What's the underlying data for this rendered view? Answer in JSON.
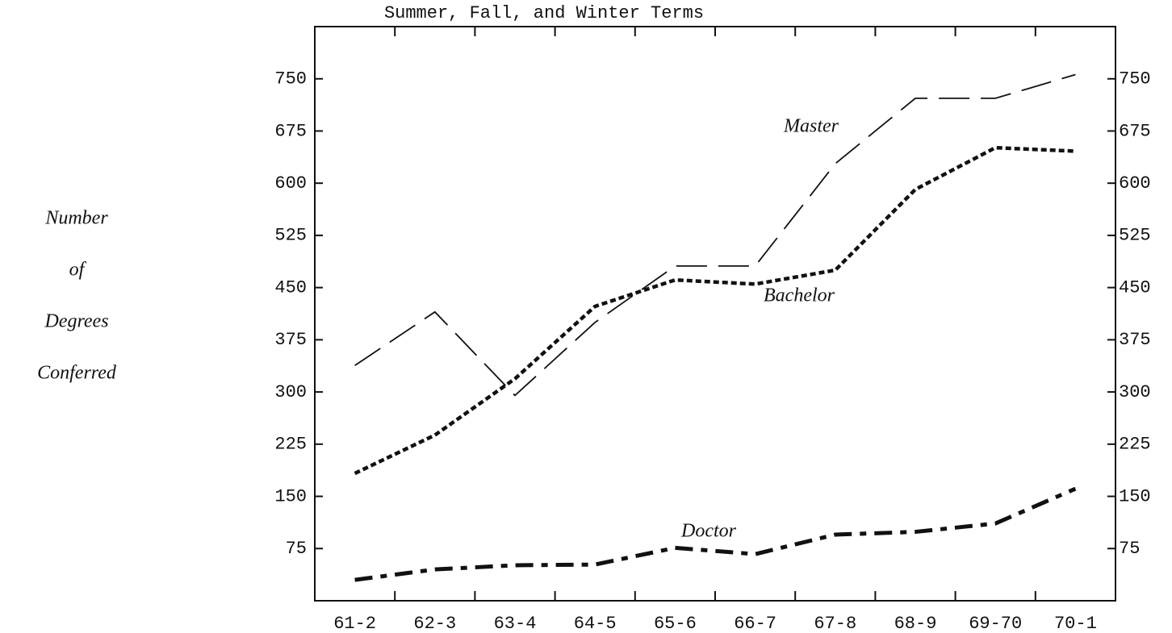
{
  "chart_data": {
    "type": "line",
    "title": "Summer, Fall, and Winter Terms",
    "y_label": [
      "Number",
      "of",
      "Degrees",
      "Conferred"
    ],
    "categories": [
      "61-2",
      "62-3",
      "63-4",
      "64-5",
      "65-6",
      "66-7",
      "67-8",
      "68-9",
      "69-70",
      "70-1"
    ],
    "series": [
      {
        "name": "Master",
        "color": "#111111",
        "style": "long-dash",
        "values": [
          338,
          415,
          295,
          400,
          481,
          481,
          628,
          722,
          722,
          756
        ]
      },
      {
        "name": "Bachelor",
        "color": "#111111",
        "style": "short-dash",
        "values": [
          183,
          238,
          319,
          423,
          461,
          455,
          475,
          591,
          651,
          646
        ]
      },
      {
        "name": "Doctor",
        "color": "#111111",
        "style": "dash-dot",
        "values": [
          30,
          45,
          51,
          52,
          76,
          67,
          95,
          99,
          111,
          161
        ]
      }
    ],
    "ylim": [
      0,
      825
    ],
    "yticks": [
      75,
      150,
      225,
      300,
      375,
      450,
      525,
      600,
      675,
      750
    ],
    "grid": false
  }
}
